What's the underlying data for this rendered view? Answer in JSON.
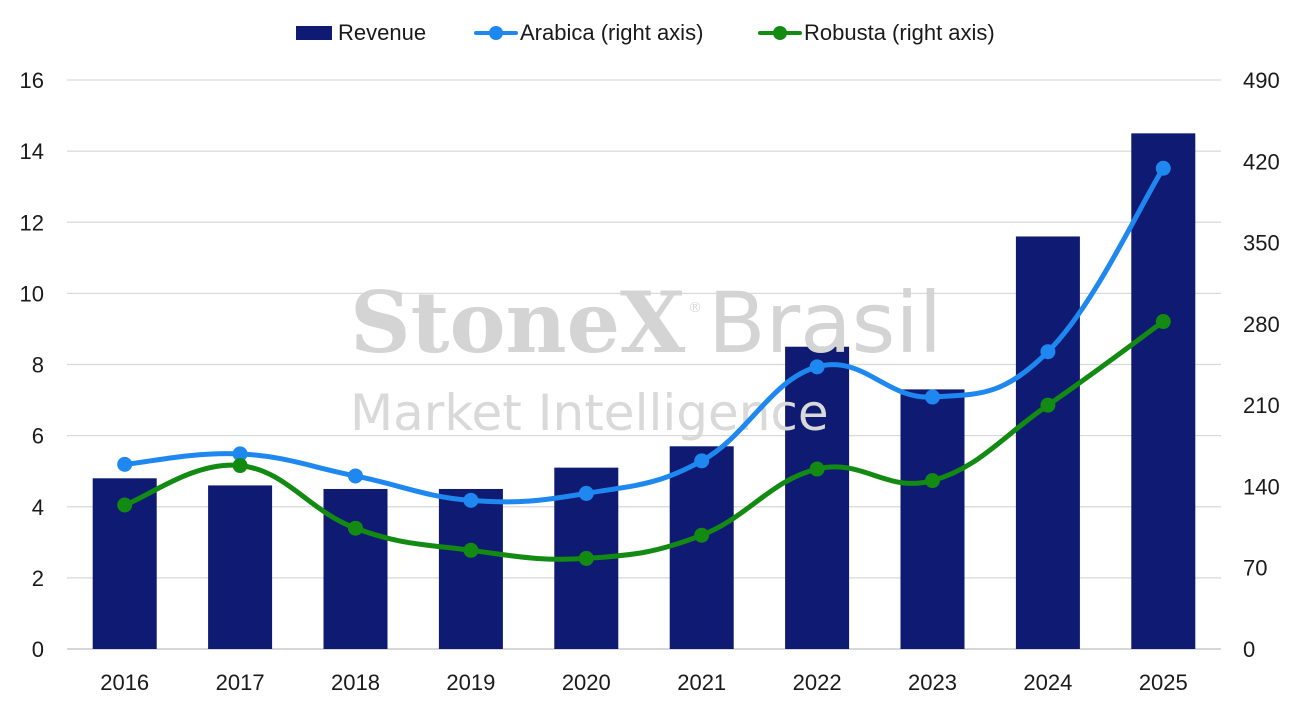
{
  "chart_data": {
    "type": "bar",
    "categories": [
      "2016",
      "2017",
      "2018",
      "2019",
      "2020",
      "2021",
      "2022",
      "2023",
      "2024",
      "2025"
    ],
    "series": [
      {
        "name": "Revenue",
        "type": "bar",
        "axis": "left",
        "values": [
          4.8,
          4.6,
          4.5,
          4.5,
          5.1,
          5.7,
          8.5,
          7.3,
          11.6,
          14.5
        ],
        "color": "#0f1a73"
      },
      {
        "name": "Arabica (right axis)",
        "type": "line",
        "axis": "right",
        "values": [
          159,
          168,
          149,
          128,
          134,
          162,
          243,
          217,
          256,
          414
        ],
        "color": "#1e88f0"
      },
      {
        "name": "Robusta (right axis)",
        "type": "line",
        "axis": "right",
        "values": [
          124,
          158,
          104,
          85,
          78,
          98,
          155,
          145,
          210,
          282
        ],
        "color": "#138a12"
      }
    ],
    "left_axis": {
      "min": 0,
      "max": 16,
      "ticks": [
        "0",
        "2",
        "4",
        "6",
        "8",
        "10",
        "12",
        "14",
        "16"
      ]
    },
    "right_axis": {
      "min": 0,
      "max": 490,
      "ticks": [
        "0",
        "70",
        "140",
        "210",
        "280",
        "350",
        "420",
        "490"
      ]
    },
    "grid": true,
    "legend_position": "top-center",
    "title": "",
    "xlabel": "",
    "ylabel": ""
  },
  "legend": {
    "revenue_label": "Revenue",
    "arabica_label": "Arabica (right axis)",
    "robusta_label": "Robusta (right axis)"
  },
  "watermark": {
    "line1_bold": "StoneX",
    "line1_light": "Brasil",
    "registered": "®",
    "line2": "Market Intelligence"
  }
}
